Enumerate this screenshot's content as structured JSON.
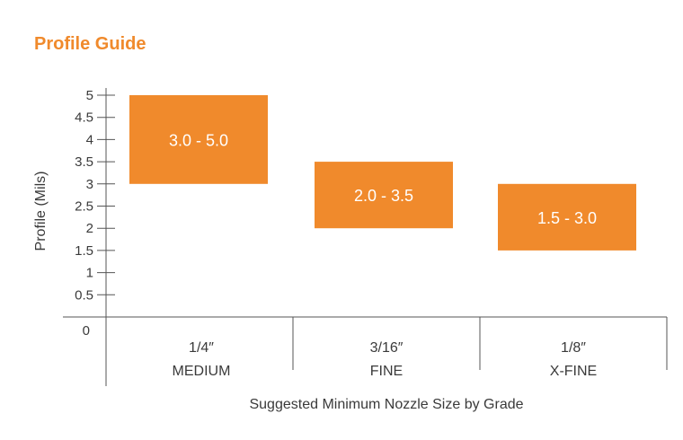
{
  "title": "Profile Guide",
  "chart_data": {
    "type": "bar",
    "title": "Profile Guide",
    "ylabel": "Profile (Mils)",
    "xlabel": "Suggested Minimum Nozzle Size by Grade",
    "ylim": [
      0,
      5
    ],
    "yticks": [
      "0",
      "0.5",
      "1",
      "1.5",
      "2",
      "2.5",
      "3",
      "3.5",
      "4",
      "4.5",
      "5"
    ],
    "categories": [
      {
        "size": "1/4″",
        "grade": "MEDIUM"
      },
      {
        "size": "3/16″",
        "grade": "FINE"
      },
      {
        "size": "1/8″",
        "grade": "X-FINE"
      }
    ],
    "ranges": [
      {
        "low": 3.0,
        "high": 5.0,
        "label": "3.0 - 5.0"
      },
      {
        "low": 2.0,
        "high": 3.5,
        "label": "2.0 - 3.5"
      },
      {
        "low": 1.5,
        "high": 3.0,
        "label": "1.5 - 3.0"
      }
    ],
    "bar_color": "#f08a2c",
    "title_color": "#f08a2c",
    "axis_color": "#555555"
  }
}
